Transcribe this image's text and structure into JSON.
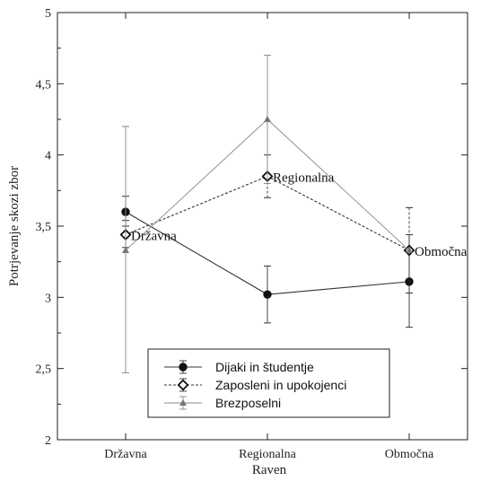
{
  "chart_data": {
    "type": "line",
    "xlabel": "Raven",
    "ylabel": "Potrjevanje skozi zbor",
    "categories": [
      "Državna",
      "Regionalna",
      "Območna"
    ],
    "ylim": [
      2,
      5
    ],
    "yticks": [
      "2",
      "2,5",
      "3",
      "3,5",
      "4",
      "4,5",
      "5"
    ],
    "grid": false,
    "legend_position": "bottom-center",
    "series": [
      {
        "name": "Dijaki in študentje",
        "marker": "circle",
        "line_style": "solid",
        "color": "#333333",
        "values": [
          3.6,
          3.02,
          3.11
        ],
        "err_low": [
          3.5,
          2.82,
          2.79
        ],
        "err_high": [
          3.71,
          3.22,
          3.44
        ]
      },
      {
        "name": "Zaposleni in upokojenci",
        "marker": "diamond",
        "line_style": "dashed",
        "color": "#333333",
        "values": [
          3.44,
          3.85,
          3.33
        ],
        "err_low": [
          3.35,
          3.7,
          3.03
        ],
        "err_high": [
          3.54,
          4.0,
          3.63
        ]
      },
      {
        "name": "Brezposelni",
        "marker": "triangle",
        "line_style": "thin",
        "color": "#888888",
        "values": [
          3.33,
          4.25,
          3.33
        ],
        "err_low": [
          2.47,
          3.8,
          3.33
        ],
        "err_high": [
          4.2,
          4.7,
          3.33
        ]
      }
    ],
    "annotations": [
      {
        "text": "Državna",
        "category": "Državna",
        "y": 3.44
      },
      {
        "text": "Regionalna",
        "category": "Regionalna",
        "y": 3.85
      },
      {
        "text": "Območna",
        "category": "Območna",
        "y": 3.33
      }
    ]
  }
}
